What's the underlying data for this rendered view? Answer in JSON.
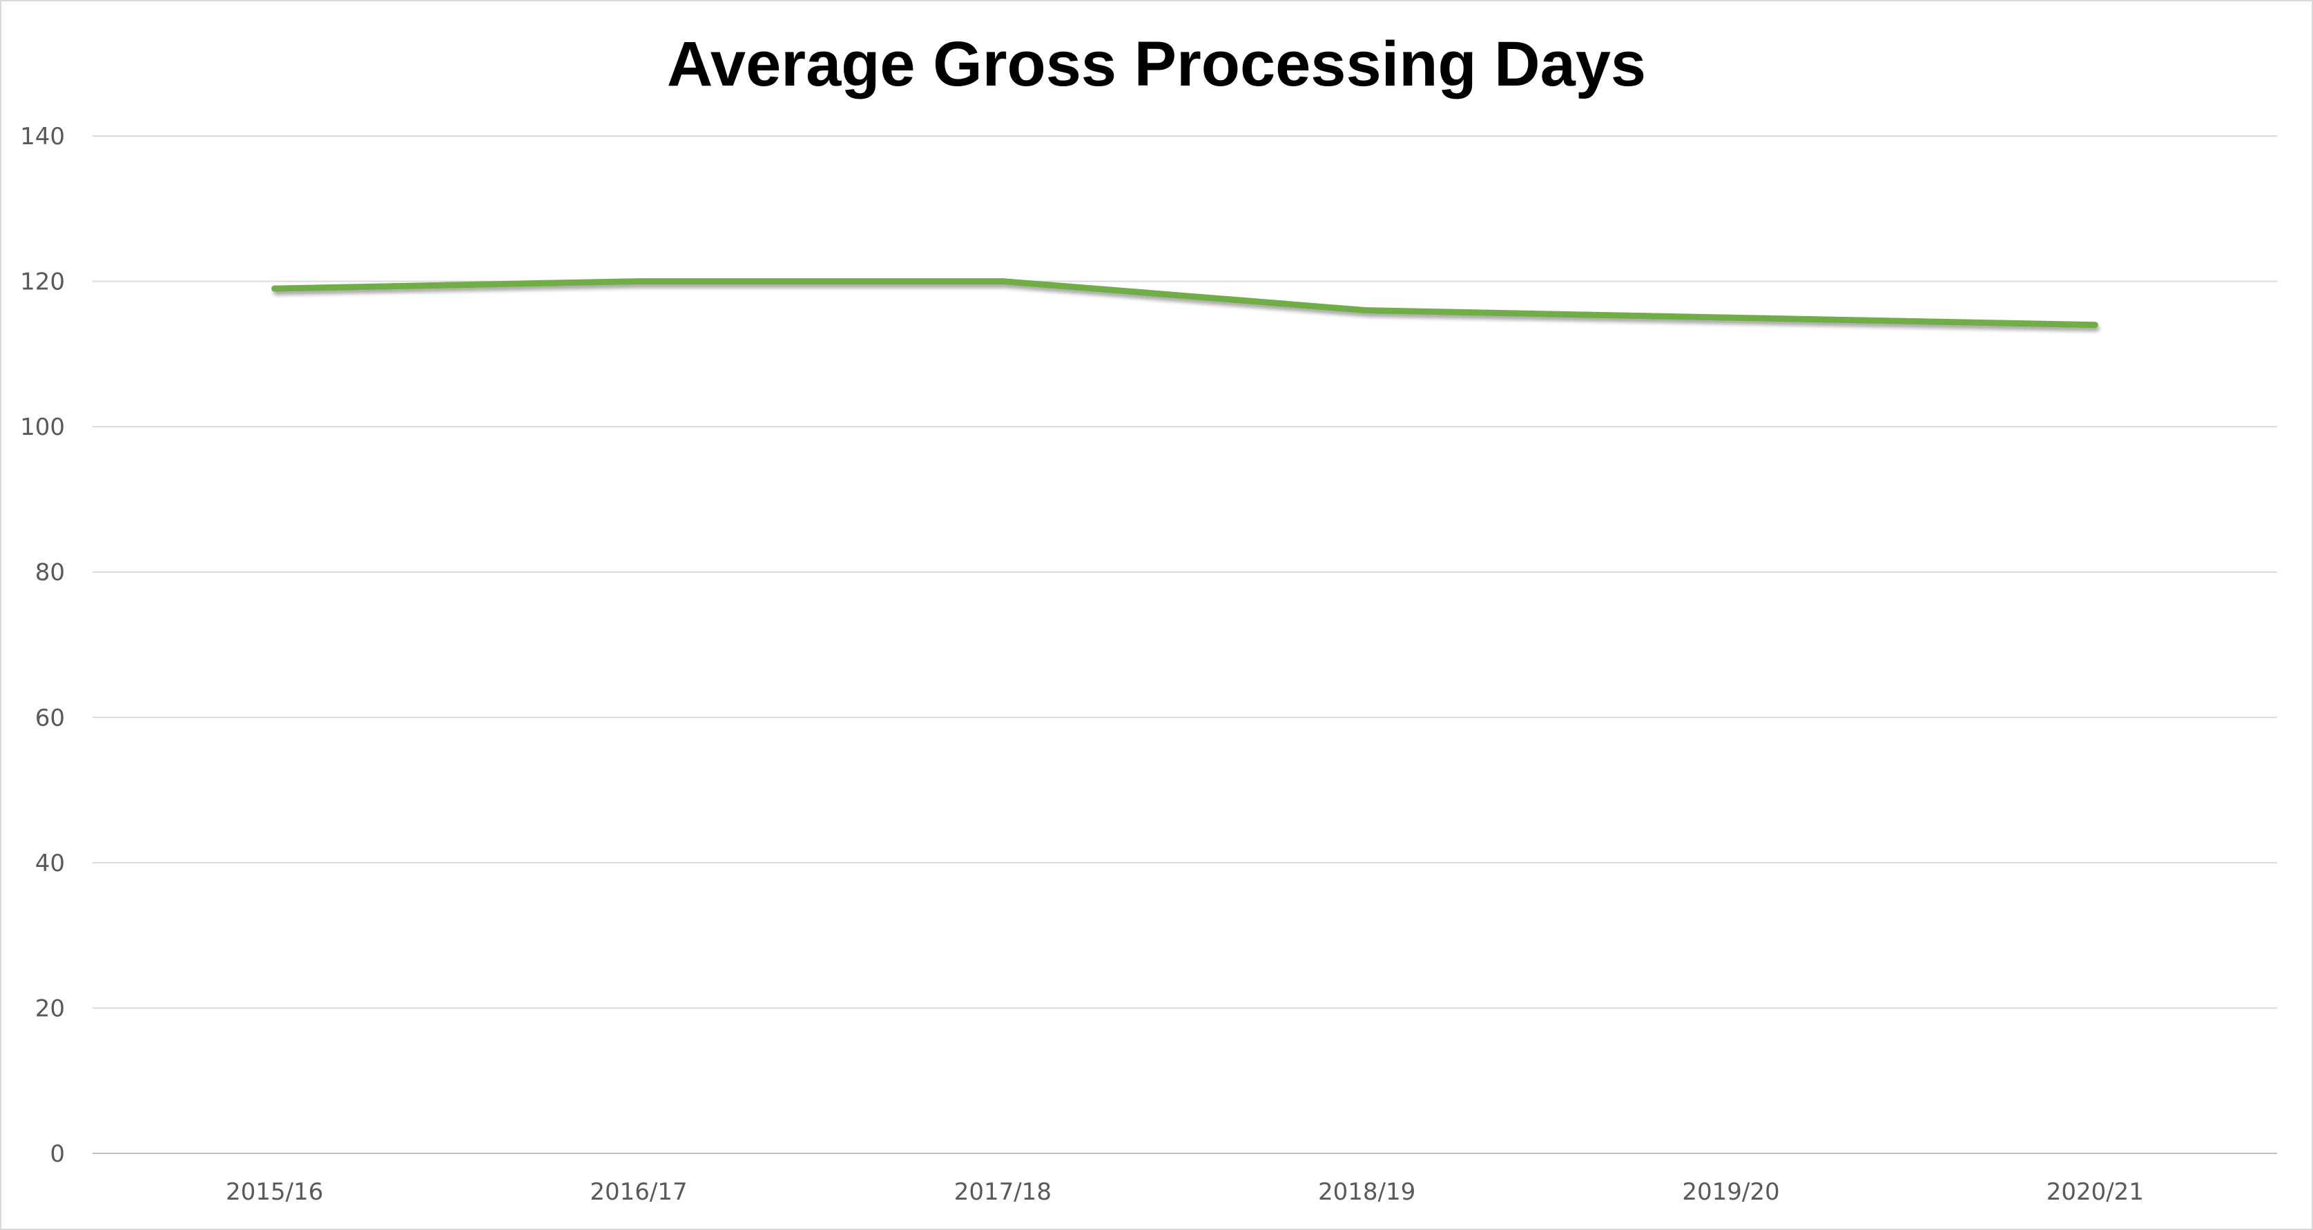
{
  "chart_data": {
    "type": "line",
    "title": "Average Gross Processing Days",
    "xlabel": "",
    "ylabel": "",
    "categories": [
      "2015/16",
      "2016/17",
      "2017/18",
      "2018/19",
      "2019/20",
      "2020/21"
    ],
    "series": [
      {
        "values": [
          119,
          120,
          120,
          116,
          115,
          114
        ],
        "color": "#70ad47"
      }
    ],
    "ylim": [
      0,
      140
    ],
    "yticks": [
      0,
      20,
      40,
      60,
      80,
      100,
      120,
      140
    ],
    "grid": true,
    "legend": "none"
  }
}
